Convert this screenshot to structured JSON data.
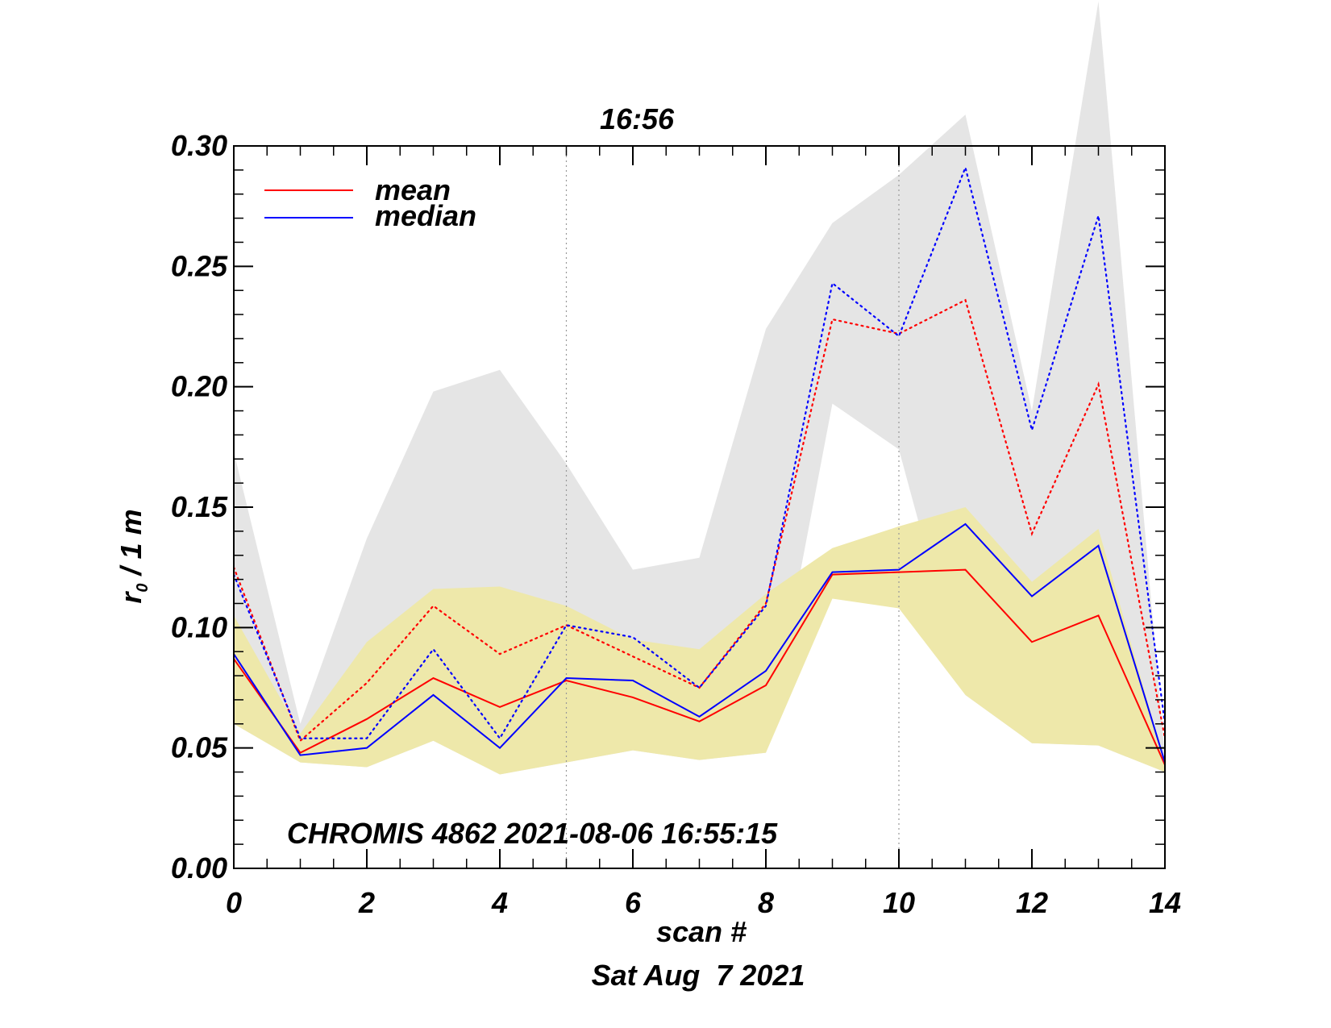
{
  "chart_data": {
    "type": "line",
    "title": "16:56",
    "xlabel": "scan #",
    "ylabel_main": "r",
    "ylabel_sub": "0",
    "ylabel_rest": " / 1 m",
    "date_label": "Sat Aug  7 2021",
    "annotation": "CHROMIS 4862 2021-08-06 16:55:15",
    "xlim": [
      0,
      14
    ],
    "ylim": [
      0,
      0.3
    ],
    "xticks": [
      0,
      2,
      4,
      6,
      8,
      10,
      12,
      14
    ],
    "xtick_labels": [
      "0",
      "2",
      "4",
      "6",
      "8",
      "10",
      "12",
      "14"
    ],
    "yticks": [
      0,
      0.05,
      0.1,
      0.15,
      0.2,
      0.25,
      0.3
    ],
    "ytick_labels": [
      "0.00",
      "0.05",
      "0.10",
      "0.15",
      "0.20",
      "0.25",
      "0.30"
    ],
    "vertical_markers": [
      5,
      10
    ],
    "x": [
      0,
      1,
      2,
      3,
      4,
      5,
      6,
      7,
      8,
      9,
      10,
      11,
      12,
      13,
      14
    ],
    "bands": [
      {
        "name": "full range",
        "color": "#e5e5e5",
        "upper": [
          0.173,
          0.06,
          0.137,
          0.198,
          0.207,
          0.168,
          0.124,
          0.129,
          0.224,
          0.268,
          0.288,
          0.313,
          0.19,
          0.36,
          0.046
        ],
        "lower": [
          0.06,
          0.044,
          0.042,
          0.053,
          0.039,
          0.044,
          0.049,
          0.045,
          0.048,
          0.193,
          0.174,
          0.072,
          0.052,
          0.051,
          0.04
        ]
      },
      {
        "name": "inner range",
        "color": "#eee8aa",
        "upper": [
          0.105,
          0.056,
          0.094,
          0.116,
          0.117,
          0.109,
          0.095,
          0.091,
          0.114,
          0.133,
          0.142,
          0.15,
          0.119,
          0.141,
          0.044
        ],
        "lower": [
          0.06,
          0.044,
          0.042,
          0.053,
          0.039,
          0.044,
          0.049,
          0.045,
          0.048,
          0.112,
          0.108,
          0.072,
          0.052,
          0.051,
          0.04
        ]
      }
    ],
    "series": [
      {
        "name": "mean",
        "color": "#ff0000",
        "style": "solid",
        "legend": true,
        "values": [
          0.087,
          0.048,
          0.062,
          0.079,
          0.067,
          0.078,
          0.071,
          0.061,
          0.076,
          0.122,
          0.123,
          0.124,
          0.094,
          0.105,
          0.043
        ]
      },
      {
        "name": "median",
        "color": "#0000ff",
        "style": "solid",
        "legend": true,
        "values": [
          0.089,
          0.047,
          0.05,
          0.072,
          0.05,
          0.079,
          0.078,
          0.063,
          0.082,
          0.123,
          0.124,
          0.143,
          0.113,
          0.134,
          0.044
        ]
      },
      {
        "name": "mean (dotted)",
        "color": "#ff0000",
        "style": "dotted",
        "legend": false,
        "values": [
          0.125,
          0.053,
          0.077,
          0.109,
          0.089,
          0.101,
          0.088,
          0.075,
          0.11,
          0.228,
          0.222,
          0.236,
          0.139,
          0.201,
          0.054
        ]
      },
      {
        "name": "median (dotted)",
        "color": "#0000ff",
        "style": "dotted",
        "legend": false,
        "values": [
          0.122,
          0.054,
          0.054,
          0.091,
          0.054,
          0.101,
          0.096,
          0.075,
          0.109,
          0.243,
          0.221,
          0.291,
          0.182,
          0.271,
          0.06
        ]
      }
    ],
    "legend": [
      {
        "label": "mean",
        "color": "#ff0000"
      },
      {
        "label": "median",
        "color": "#0000ff"
      }
    ]
  }
}
